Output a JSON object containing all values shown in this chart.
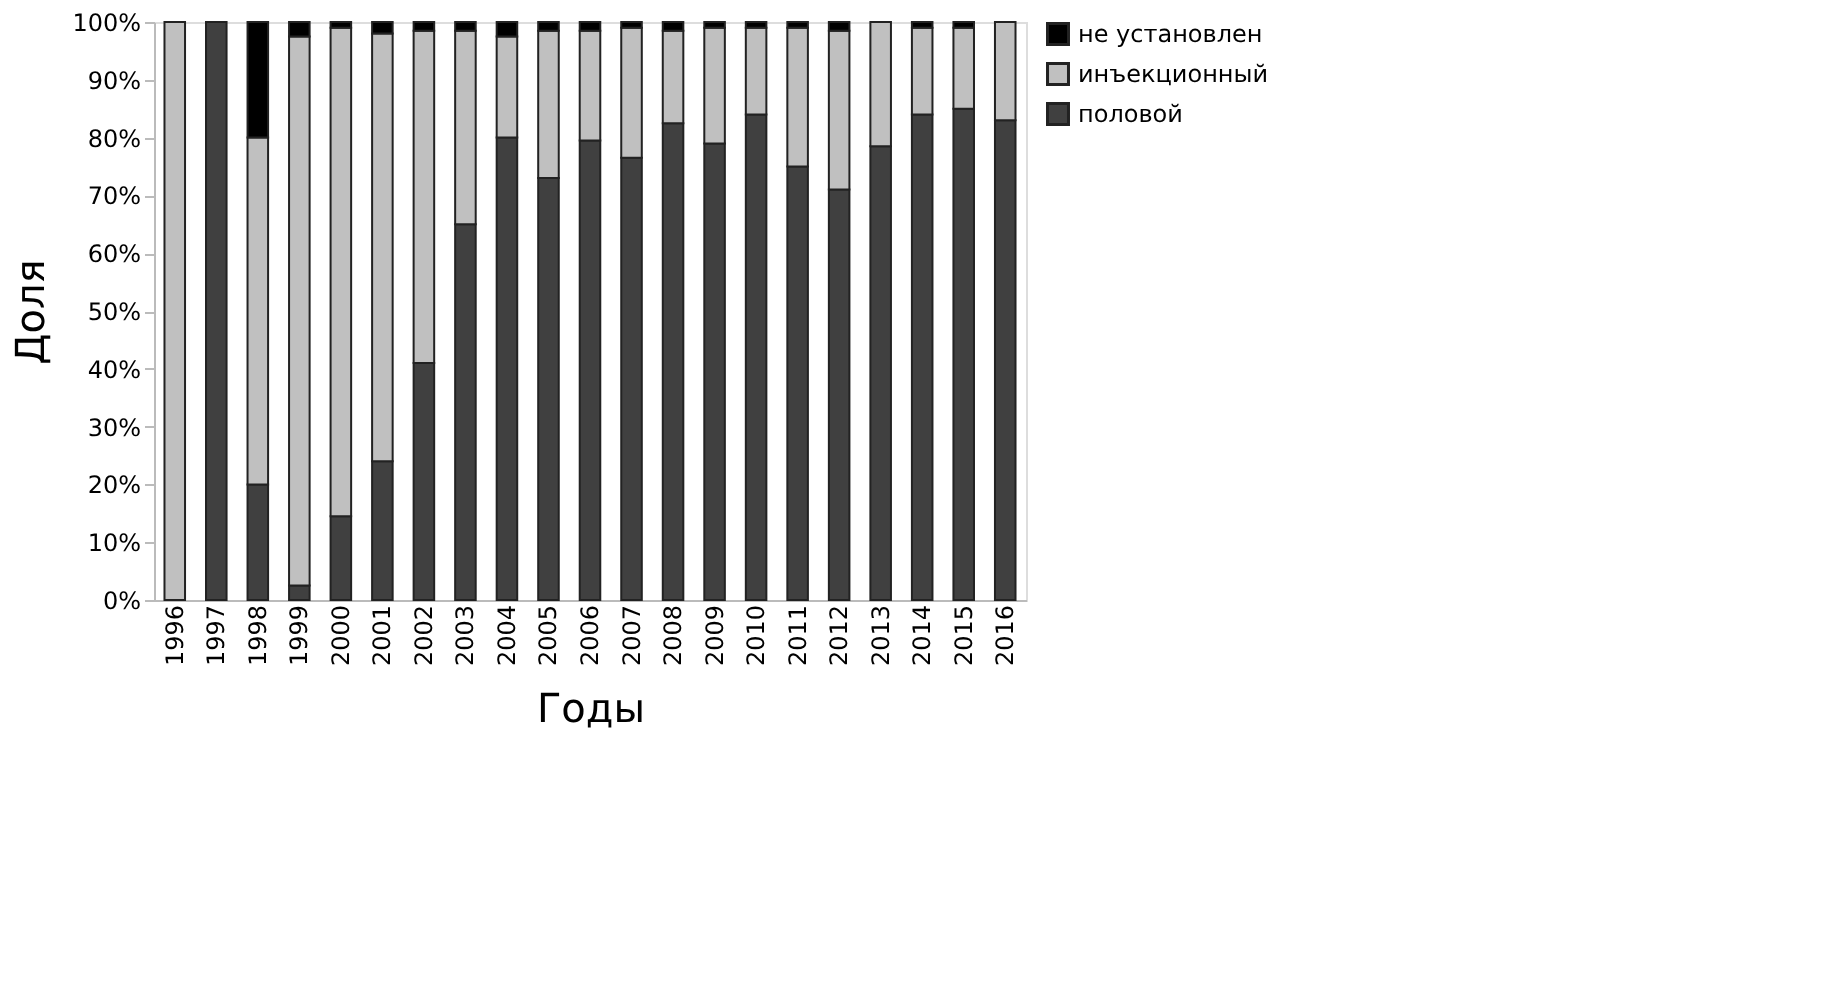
{
  "chart_data": {
    "type": "bar",
    "stacked": true,
    "xlabel": "Годы",
    "ylabel": "Доля",
    "categories": [
      "1996",
      "1997",
      "1998",
      "1999",
      "2000",
      "2001",
      "2002",
      "2003",
      "2004",
      "2005",
      "2006",
      "2007",
      "2008",
      "2009",
      "2010",
      "2011",
      "2012",
      "2013",
      "2014",
      "2015",
      "2016"
    ],
    "series": [
      {
        "name": "половой",
        "color": "#404040",
        "values": [
          0,
          100,
          20,
          2.5,
          14.5,
          24,
          41,
          65,
          80,
          73,
          79.5,
          76.5,
          82.5,
          79,
          84,
          75,
          71,
          78.5,
          84,
          85,
          83
        ]
      },
      {
        "name": "инъекционный",
        "color": "#c0c0c0",
        "values": [
          100,
          0,
          60,
          95,
          84.5,
          74,
          57.5,
          33.5,
          17.5,
          25.5,
          19,
          22.5,
          16,
          20,
          15,
          24,
          27.5,
          21.5,
          15,
          14,
          17
        ]
      },
      {
        "name": "не установлен",
        "color": "#000000",
        "values": [
          0,
          0,
          20,
          2.5,
          1,
          2,
          1.5,
          1.5,
          2.5,
          1.5,
          1.5,
          1,
          1.5,
          1,
          1,
          1,
          1.5,
          0,
          1,
          1,
          0
        ]
      }
    ],
    "ylim": [
      0,
      100
    ],
    "yticks": [
      {
        "value": 0,
        "label": "0%"
      },
      {
        "value": 10,
        "label": "10%"
      },
      {
        "value": 20,
        "label": "20%"
      },
      {
        "value": 30,
        "label": "30%"
      },
      {
        "value": 40,
        "label": "40%"
      },
      {
        "value": 50,
        "label": "50%"
      },
      {
        "value": 60,
        "label": "60%"
      },
      {
        "value": 70,
        "label": "70%"
      },
      {
        "value": 80,
        "label": "80%"
      },
      {
        "value": 90,
        "label": "90%"
      },
      {
        "value": 100,
        "label": "100%"
      }
    ],
    "grid": false,
    "legend": "right"
  }
}
